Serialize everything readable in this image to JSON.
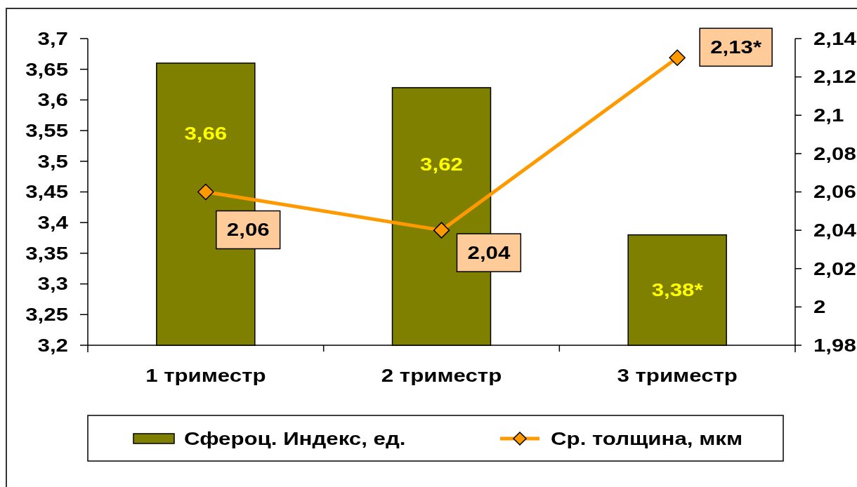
{
  "chart_data": {
    "type": "bar",
    "categories": [
      "1 триместр",
      "2 триместр",
      "3 триместр"
    ],
    "series": [
      {
        "name": "Сфероц. Индекс, ед.",
        "color": "#808000",
        "values": [
          3.66,
          3.62,
          3.38
        ],
        "value_labels": [
          "3,66",
          "3,62",
          "3,38*"
        ]
      },
      {
        "name": "Ср. толщина, мкм",
        "type": "line",
        "axis": "y2",
        "color": "#ff9900",
        "marker": "diamond",
        "values": [
          2.06,
          2.04,
          2.13
        ],
        "value_labels": [
          "2,06",
          "2,04",
          "2,13*"
        ]
      }
    ],
    "ylim": [
      3.2,
      3.7
    ],
    "yticks": [
      {
        "value": 3.2,
        "label": "3,2"
      },
      {
        "value": 3.25,
        "label": "3,25"
      },
      {
        "value": 3.3,
        "label": "3,3"
      },
      {
        "value": 3.35,
        "label": "3,35"
      },
      {
        "value": 3.4,
        "label": "3,4"
      },
      {
        "value": 3.45,
        "label": "3,45"
      },
      {
        "value": 3.5,
        "label": "3,5"
      },
      {
        "value": 3.55,
        "label": "3,55"
      },
      {
        "value": 3.6,
        "label": "3,6"
      },
      {
        "value": 3.65,
        "label": "3,65"
      },
      {
        "value": 3.7,
        "label": "3,7"
      }
    ],
    "y2lim": [
      1.98,
      2.14
    ],
    "y2ticks": [
      {
        "value": 1.98,
        "label": "1,98"
      },
      2,
      {
        "value": 2.02,
        "label": "2,02"
      },
      {
        "value": 2.04,
        "label": "2,04"
      },
      {
        "value": 2.06,
        "label": "2,06"
      },
      {
        "value": 2.08,
        "label": "2,08"
      },
      {
        "value": 2.1,
        "label": "2,1"
      },
      {
        "value": 2.12,
        "label": "2,12"
      },
      {
        "value": 2.14,
        "label": "2,14"
      }
    ],
    "legend": "bottom"
  }
}
